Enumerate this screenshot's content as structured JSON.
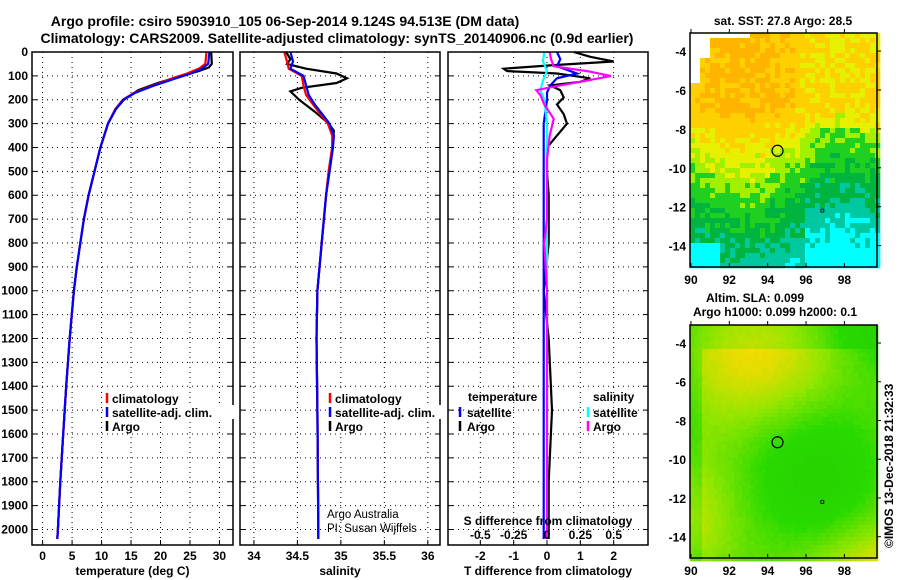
{
  "title_line1": "Argo profile: csiro 5903910_105 06-Sep-2014 9.124S 94.513E (DM data)",
  "title_line2": "Climatology: CARS2009. Satellite-adjusted climatology: synTS_20140906.nc (0.9d earlier)",
  "credit": "©IMOS 13-Dec-2018 21:32:33",
  "colors": {
    "climatology": "#ff0000",
    "satellite": "#0000ff",
    "argo": "#000000",
    "sal_satellite": "#00ffff",
    "sal_argo": "#ff00ff"
  },
  "chart_data": [
    {
      "type": "line",
      "name": "temperature",
      "xlabel": "temperature (deg C)",
      "ylabel": "",
      "xlim": [
        -1.8,
        32.3
      ],
      "ylim": [
        2065,
        0
      ],
      "xticks": [
        0,
        5,
        10,
        15,
        20,
        25,
        30
      ],
      "yticks": [
        0,
        100,
        200,
        300,
        400,
        500,
        600,
        700,
        800,
        900,
        1000,
        1100,
        1200,
        1300,
        1400,
        1500,
        1600,
        1700,
        1800,
        1900,
        2000
      ],
      "grid": true,
      "legend": [
        "climatology",
        "satellite-adj. clim.",
        "Argo"
      ],
      "legend_placement": "lower-center",
      "series": [
        {
          "name": "Argo",
          "color": "#000000",
          "depth": [
            0,
            50,
            65,
            80,
            100,
            130,
            160,
            200,
            240,
            300,
            400,
            500,
            600,
            700,
            800,
            900,
            1000,
            1200,
            1400,
            1600,
            1800,
            2000,
            2040
          ],
          "values": [
            28.6,
            28.7,
            28.2,
            26.5,
            23.5,
            19.5,
            16.2,
            13.8,
            12.4,
            11.1,
            9.8,
            8.8,
            7.8,
            7.0,
            6.4,
            5.8,
            5.3,
            4.6,
            4.0,
            3.5,
            3.0,
            2.6,
            2.5
          ]
        },
        {
          "name": "climatology",
          "color": "#ff0000",
          "depth": [
            0,
            50,
            70,
            90,
            110,
            140,
            170,
            200,
            240,
            300,
            400,
            500,
            600,
            700,
            800,
            900,
            1000,
            1200,
            1400,
            1600,
            1800,
            2000,
            2040
          ],
          "values": [
            27.8,
            27.6,
            26.5,
            24.5,
            22.0,
            18.8,
            15.6,
            13.6,
            12.3,
            11.1,
            9.8,
            8.8,
            7.8,
            7.0,
            6.4,
            5.8,
            5.3,
            4.6,
            4.0,
            3.5,
            3.0,
            2.6,
            2.5
          ]
        },
        {
          "name": "satellite-adj. clim.",
          "color": "#0000ff",
          "depth": [
            0,
            50,
            70,
            90,
            110,
            140,
            170,
            200,
            240,
            300,
            400,
            500,
            600,
            700,
            800,
            900,
            1000,
            1200,
            1400,
            1600,
            1800,
            2000,
            2040
          ],
          "values": [
            28.3,
            28.1,
            27.0,
            25.2,
            22.6,
            19.0,
            15.8,
            13.7,
            12.4,
            11.1,
            9.8,
            8.8,
            7.8,
            7.0,
            6.4,
            5.8,
            5.3,
            4.6,
            4.0,
            3.5,
            3.0,
            2.6,
            2.5
          ]
        }
      ]
    },
    {
      "type": "line",
      "name": "salinity",
      "xlabel": "salinity",
      "xlim": [
        33.84,
        36.14
      ],
      "ylim": [
        2065,
        0
      ],
      "xticks": [
        34,
        34.5,
        35,
        35.5,
        36
      ],
      "xticklabels": [
        "34",
        "34.5",
        "35",
        "35.5",
        "36"
      ],
      "grid": true,
      "legend": [
        "climatology",
        "satellite-adj. clim.",
        "Argo"
      ],
      "legend_placement": "lower-center",
      "annotation": [
        "Argo Australia",
        "PI: Susan Wijffels"
      ],
      "series": [
        {
          "name": "Argo",
          "color": "#000000",
          "depth": [
            0,
            30,
            50,
            70,
            90,
            110,
            130,
            150,
            165,
            200,
            250,
            300,
            330,
            400,
            500,
            600,
            800,
            1000,
            1200,
            1500,
            2000,
            2040
          ],
          "values": [
            34.37,
            34.42,
            34.38,
            34.6,
            34.95,
            35.07,
            34.95,
            34.55,
            34.42,
            34.52,
            34.7,
            34.86,
            34.92,
            34.9,
            34.86,
            34.83,
            34.78,
            34.73,
            34.72,
            34.73,
            34.74,
            34.74
          ]
        },
        {
          "name": "climatology",
          "color": "#ff0000",
          "depth": [
            0,
            40,
            70,
            100,
            140,
            180,
            220,
            300,
            350,
            400,
            500,
            600,
            800,
            1000,
            1200,
            1500,
            2000,
            2040
          ],
          "values": [
            34.35,
            34.38,
            34.4,
            34.55,
            34.57,
            34.6,
            34.68,
            34.85,
            34.9,
            34.9,
            34.86,
            34.83,
            34.78,
            34.73,
            34.72,
            34.73,
            34.74,
            34.74
          ]
        },
        {
          "name": "satellite-adj. clim.",
          "color": "#0000ff",
          "depth": [
            0,
            40,
            70,
            100,
            140,
            180,
            220,
            300,
            350,
            400,
            500,
            600,
            800,
            1000,
            1200,
            1500,
            2000,
            2040
          ],
          "values": [
            34.42,
            34.45,
            34.42,
            34.57,
            34.6,
            34.63,
            34.7,
            34.87,
            34.92,
            34.91,
            34.87,
            34.83,
            34.78,
            34.73,
            34.72,
            34.73,
            34.74,
            34.74
          ]
        }
      ]
    },
    {
      "type": "line",
      "name": "difference",
      "xlabel": "T difference from climatology",
      "x2label": "S difference from climatology",
      "xlim": [
        -2.97,
        3.03
      ],
      "x2lim": [
        -0.7425,
        0.7575
      ],
      "ylim": [
        2065,
        0
      ],
      "xticks": [
        -2,
        -1,
        0,
        1,
        2
      ],
      "x2ticks": [
        -0.5,
        -0.25,
        0,
        0.25,
        0.5
      ],
      "x2ticklabels": [
        "-0.5",
        "-0.25",
        "0",
        "0.25",
        "0.5"
      ],
      "grid": true,
      "legend_temperature": {
        "title": "temperature",
        "items": [
          "satellite",
          "Argo"
        ]
      },
      "legend_salinity": {
        "title": "salinity",
        "items": [
          "satellite",
          "Argo"
        ]
      },
      "series": [
        {
          "name": "T Argo",
          "axis": "T",
          "color": "#000000",
          "depth": [
            0,
            20,
            40,
            55,
            70,
            80,
            90,
            110,
            125,
            140,
            160,
            190,
            220,
            260,
            300,
            350,
            400,
            500,
            600,
            800,
            1000,
            1200,
            1500,
            1800,
            2000,
            2040
          ],
          "values": [
            0.8,
            1.3,
            2.0,
            0.2,
            -1.3,
            -1.2,
            0.3,
            1.3,
            1.0,
            0.1,
            0.4,
            0.5,
            0.3,
            0.5,
            0.6,
            0.3,
            0.0,
            0.0,
            0.05,
            0.05,
            -0.1,
            0.05,
            0.15,
            0.05,
            0.05,
            0.05
          ]
        },
        {
          "name": "T satellite",
          "axis": "T",
          "color": "#0000ff",
          "depth": [
            0,
            30,
            60,
            90,
            110,
            140,
            170,
            200,
            300,
            400,
            600,
            1000,
            1500,
            2040
          ],
          "values": [
            0.3,
            0.4,
            0.3,
            0.9,
            0.3,
            0.1,
            0.0,
            0.0,
            -0.1,
            -0.1,
            -0.1,
            -0.1,
            -0.1,
            -0.1
          ]
        },
        {
          "name": "S satellite",
          "axis": "S",
          "color": "#00ffff",
          "depth": [
            0,
            40,
            80,
            120,
            160,
            200,
            300,
            400,
            600,
            1000,
            1500,
            2040
          ],
          "values": [
            -0.02,
            -0.03,
            0.0,
            -0.03,
            -0.05,
            -0.02,
            0.0,
            0.0,
            0.0,
            0.0,
            0.0,
            0.0
          ]
        },
        {
          "name": "S Argo",
          "axis": "S",
          "color": "#ff00ff",
          "depth": [
            0,
            30,
            60,
            80,
            100,
            120,
            140,
            160,
            180,
            220,
            280,
            350,
            450,
            700,
            800,
            1000,
            1500,
            2040
          ],
          "values": [
            0.02,
            0.03,
            0.05,
            0.3,
            0.48,
            0.3,
            0.1,
            -0.08,
            -0.05,
            -0.02,
            0.05,
            0.02,
            0.0,
            0.0,
            -0.02,
            0.0,
            0.0,
            0.0
          ]
        }
      ]
    },
    {
      "type": "heatmap",
      "name": "sst-map",
      "title": "sat. SST: 27.8 Argo: 28.5",
      "xlim": [
        89.95,
        99.7
      ],
      "ylim": [
        -15.1,
        -3.07
      ],
      "xticks": [
        90,
        92,
        94,
        96,
        98
      ],
      "yticks": [
        -4,
        -6,
        -8,
        -10,
        -12,
        -14
      ],
      "marker": {
        "lon": 94.513,
        "lat": -9.124
      }
    },
    {
      "type": "heatmap",
      "name": "sla-map",
      "title": "Altim. SLA: 0.099",
      "subtitle": "Argo h1000: 0.099 h2000: 0.1",
      "xlim": [
        89.95,
        99.7
      ],
      "ylim": [
        -15.1,
        -3.07
      ],
      "xticks": [
        90,
        92,
        94,
        96,
        98
      ],
      "yticks": [
        -4,
        -6,
        -8,
        -10,
        -12,
        -14
      ],
      "marker": {
        "lon": 94.513,
        "lat": -9.124
      }
    }
  ]
}
